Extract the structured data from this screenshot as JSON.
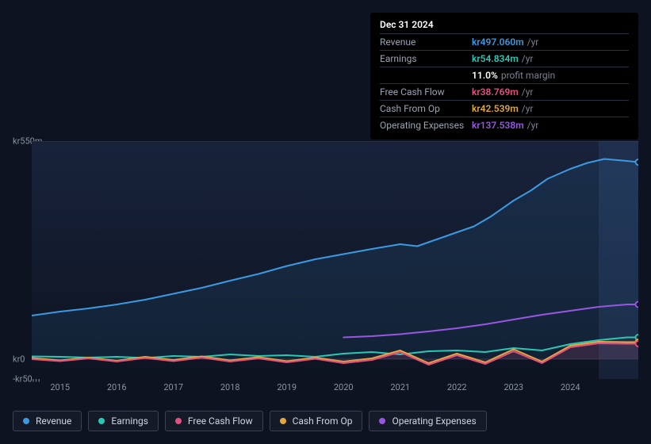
{
  "tooltip": {
    "date": "Dec 31 2024",
    "rows": [
      {
        "label": "Revenue",
        "value": "kr497.060m",
        "suffix": "/yr",
        "color": "#3b9ae1"
      },
      {
        "label": "Earnings",
        "value": "kr54.834m",
        "suffix": "/yr",
        "color": "#2bc7b5"
      },
      {
        "label": "",
        "value": "11.0%",
        "suffix": "profit margin",
        "color": "#ffffff"
      },
      {
        "label": "Free Cash Flow",
        "value": "kr38.769m",
        "suffix": "/yr",
        "color": "#e0527f"
      },
      {
        "label": "Cash From Op",
        "value": "kr42.539m",
        "suffix": "/yr",
        "color": "#e3a83c"
      },
      {
        "label": "Operating Expenses",
        "value": "kr137.538m",
        "suffix": "/yr",
        "color": "#9757e2"
      }
    ]
  },
  "chart": {
    "type": "line",
    "background": "#0d1320",
    "y_ticks": [
      {
        "label": "kr550m",
        "v": 550
      },
      {
        "label": "kr0",
        "v": 0
      },
      {
        "label": "-kr50m",
        "v": -50
      }
    ],
    "x_ticks": [
      "2015",
      "2016",
      "2017",
      "2018",
      "2019",
      "2020",
      "2021",
      "2022",
      "2023",
      "2024"
    ],
    "x_start": 2014.5,
    "x_end": 2025.2,
    "y_min": -50,
    "y_max": 550,
    "highlight_from": 2024.5,
    "series": [
      {
        "name": "Revenue",
        "color": "#3b9ae1",
        "width": 2,
        "fill_opacity": 0.1,
        "endcap": true,
        "points": [
          [
            2014.5,
            110
          ],
          [
            2015,
            120
          ],
          [
            2015.5,
            128
          ],
          [
            2016,
            138
          ],
          [
            2016.5,
            150
          ],
          [
            2017,
            165
          ],
          [
            2017.5,
            180
          ],
          [
            2018,
            198
          ],
          [
            2018.5,
            215
          ],
          [
            2019,
            235
          ],
          [
            2019.5,
            252
          ],
          [
            2020,
            265
          ],
          [
            2020.5,
            278
          ],
          [
            2021,
            290
          ],
          [
            2021.3,
            285
          ],
          [
            2021.6,
            300
          ],
          [
            2022,
            320
          ],
          [
            2022.3,
            335
          ],
          [
            2022.6,
            360
          ],
          [
            2023,
            400
          ],
          [
            2023.3,
            425
          ],
          [
            2023.6,
            455
          ],
          [
            2024,
            480
          ],
          [
            2024.3,
            495
          ],
          [
            2024.6,
            505
          ],
          [
            2025,
            500
          ],
          [
            2025.2,
            497
          ]
        ]
      },
      {
        "name": "Operating Expenses",
        "color": "#9757e2",
        "width": 2,
        "fill_opacity": 0.0,
        "endcap": true,
        "points": [
          [
            2020,
            55
          ],
          [
            2020.5,
            58
          ],
          [
            2021,
            63
          ],
          [
            2021.5,
            70
          ],
          [
            2022,
            78
          ],
          [
            2022.5,
            88
          ],
          [
            2023,
            100
          ],
          [
            2023.5,
            112
          ],
          [
            2024,
            122
          ],
          [
            2024.5,
            132
          ],
          [
            2025,
            138
          ],
          [
            2025.2,
            138
          ]
        ]
      },
      {
        "name": "Earnings",
        "color": "#2bc7b5",
        "width": 2,
        "fill_opacity": 0.0,
        "endcap": true,
        "points": [
          [
            2014.5,
            7
          ],
          [
            2015,
            6
          ],
          [
            2015.5,
            4
          ],
          [
            2016,
            6
          ],
          [
            2016.5,
            3
          ],
          [
            2017,
            8
          ],
          [
            2017.5,
            6
          ],
          [
            2018,
            12
          ],
          [
            2018.5,
            8
          ],
          [
            2019,
            10
          ],
          [
            2019.5,
            6
          ],
          [
            2020,
            14
          ],
          [
            2020.5,
            18
          ],
          [
            2021,
            12
          ],
          [
            2021.5,
            20
          ],
          [
            2022,
            22
          ],
          [
            2022.5,
            18
          ],
          [
            2023,
            28
          ],
          [
            2023.5,
            22
          ],
          [
            2024,
            38
          ],
          [
            2024.5,
            48
          ],
          [
            2025,
            55
          ],
          [
            2025.2,
            55
          ]
        ]
      },
      {
        "name": "Cash From Op",
        "color": "#e3a83c",
        "width": 2,
        "fill_opacity": 0.0,
        "endcap": true,
        "points": [
          [
            2014.5,
            3
          ],
          [
            2015,
            -3
          ],
          [
            2015.5,
            4
          ],
          [
            2016,
            -4
          ],
          [
            2016.5,
            6
          ],
          [
            2017,
            -2
          ],
          [
            2017.5,
            7
          ],
          [
            2018,
            -3
          ],
          [
            2018.5,
            5
          ],
          [
            2019,
            -5
          ],
          [
            2019.5,
            4
          ],
          [
            2020,
            -6
          ],
          [
            2020.5,
            2
          ],
          [
            2021,
            22
          ],
          [
            2021.5,
            -10
          ],
          [
            2022,
            14
          ],
          [
            2022.5,
            -8
          ],
          [
            2023,
            25
          ],
          [
            2023.5,
            -6
          ],
          [
            2024,
            34
          ],
          [
            2024.5,
            44
          ],
          [
            2025,
            43
          ],
          [
            2025.2,
            43
          ]
        ]
      },
      {
        "name": "Free Cash Flow",
        "color": "#e0527f",
        "width": 2,
        "fill_opacity": 0.15,
        "endcap": true,
        "points": [
          [
            2014.5,
            0
          ],
          [
            2015,
            -5
          ],
          [
            2015.5,
            2
          ],
          [
            2016,
            -6
          ],
          [
            2016.5,
            3
          ],
          [
            2017,
            -5
          ],
          [
            2017.5,
            4
          ],
          [
            2018,
            -6
          ],
          [
            2018.5,
            2
          ],
          [
            2019,
            -8
          ],
          [
            2019.5,
            1
          ],
          [
            2020,
            -10
          ],
          [
            2020.5,
            -2
          ],
          [
            2021,
            18
          ],
          [
            2021.5,
            -14
          ],
          [
            2022,
            10
          ],
          [
            2022.5,
            -12
          ],
          [
            2023,
            20
          ],
          [
            2023.5,
            -10
          ],
          [
            2024,
            30
          ],
          [
            2024.5,
            40
          ],
          [
            2025,
            39
          ],
          [
            2025.2,
            39
          ]
        ]
      }
    ],
    "legend": [
      {
        "label": "Revenue",
        "color": "#3b9ae1"
      },
      {
        "label": "Earnings",
        "color": "#2bc7b5"
      },
      {
        "label": "Free Cash Flow",
        "color": "#e0527f"
      },
      {
        "label": "Cash From Op",
        "color": "#e3a83c"
      },
      {
        "label": "Operating Expenses",
        "color": "#9757e2"
      }
    ]
  }
}
